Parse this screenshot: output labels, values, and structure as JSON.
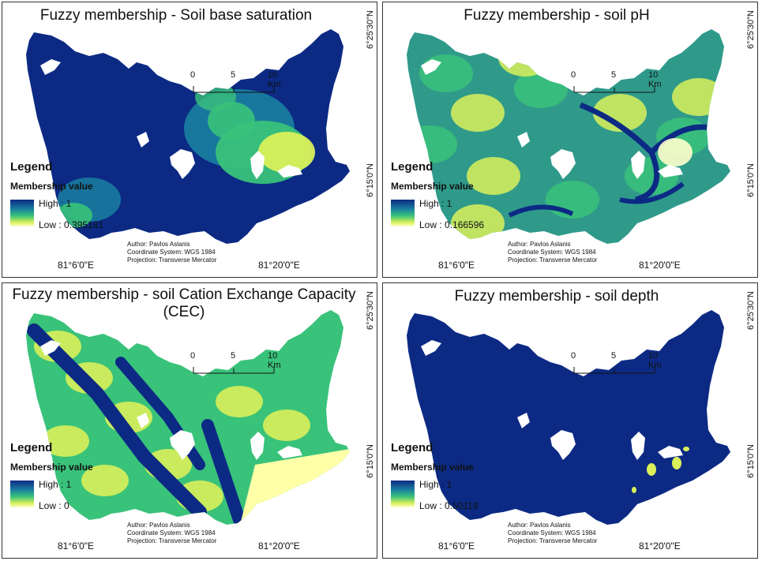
{
  "panels": [
    {
      "title": "Fuzzy membership - Soil base saturation",
      "legend_title": "Legend",
      "legend_subtitle": "Membership value",
      "legend_high": "High : 1",
      "legend_low": "Low : 0.395181",
      "fill_style": "saturation"
    },
    {
      "title": "Fuzzy membership - soil pH",
      "legend_title": "Legend",
      "legend_subtitle": "Membership value",
      "legend_high": "High : 1",
      "legend_low": "Low : 0.166596",
      "fill_style": "ph"
    },
    {
      "title": "Fuzzy membership - soil Cation Exchange Capacity (CEC)",
      "legend_title": "Legend",
      "legend_subtitle": "Membership value",
      "legend_high": "High : 1",
      "legend_low": "Low : 0",
      "fill_style": "cec"
    },
    {
      "title": "Fuzzy membership - soil depth",
      "legend_title": "Legend",
      "legend_subtitle": "Membership value",
      "legend_high": "High : 1",
      "legend_low": "Low : 0.50119",
      "fill_style": "depth"
    }
  ],
  "scale_bar": {
    "ticks": [
      "0",
      "5",
      "10 Km"
    ]
  },
  "graticule": {
    "lat_top": "6°25'30\"N",
    "lat_bottom": "6°15'0\"N",
    "lon_left": "81°6'0\"E",
    "lon_right": "81°20'0\"E"
  },
  "credits": {
    "author": "Author: Pavlos Aslanis",
    "coordinate_system": "Coordinate System: WGS 1984",
    "projection": "Projection: Transverse Mercator"
  },
  "colors": {
    "high": "#0c2a84",
    "mid_blue": "#1a7fa0",
    "mid_green": "#39c27a",
    "yellow_green": "#d9f05a",
    "low": "#ffffcc",
    "border": "#333333"
  }
}
